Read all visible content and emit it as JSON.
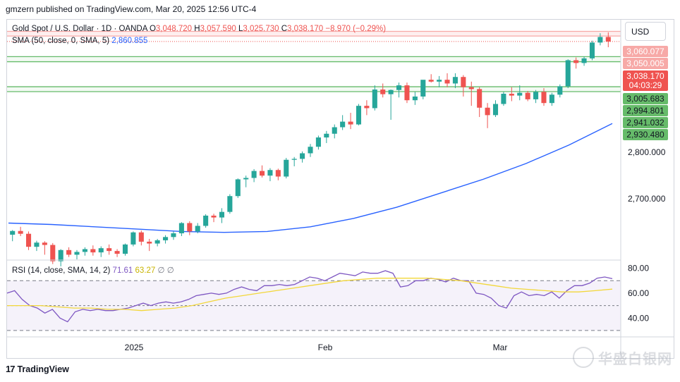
{
  "header": {
    "publisher": "gmzern published on TradingView.com, Mar 20, 2025 12:56 UTC-4"
  },
  "legend": {
    "symbol": "Gold Spot / U.S. Dollar · 1D · OANDA",
    "o_label": "O",
    "o_value": "3,048.720",
    "h_label": "H",
    "h_value": "3,057.590",
    "l_label": "L",
    "l_value": "3,025.730",
    "c_label": "C",
    "c_value": "3,038.170",
    "change": "−8.970 (−0.29%)",
    "sma_label": "SMA (50, close, 0, SMA, 5)",
    "sma_value": "2,860.855"
  },
  "rsi_legend": {
    "label": "RSI (14, close, SMA, 14, 2)",
    "rsi_value": "71.61",
    "rsi_sma_value": "63.27",
    "extra1": "∅",
    "extra2": "∅"
  },
  "currency_button": "USD",
  "footer": {
    "brand": "TradingView"
  },
  "watermark": "华盛白银网",
  "colors": {
    "up": "#26a69a",
    "down": "#ef5350",
    "sma": "#2962ff",
    "rsi": "#7e57c2",
    "rsi_sma": "#f2d73a",
    "resistance_zone": "#f7a9a7",
    "support_zone": "#66bb6a"
  },
  "chart_data": [
    {
      "type": "candlestick",
      "title": "Gold Spot / U.S. Dollar · 1D · OANDA",
      "y_ticks": [
        {
          "value": 2700,
          "label": "2,700.000"
        },
        {
          "value": 2800,
          "label": "2,800.000"
        }
      ],
      "x_ticks": [
        "2025",
        "Feb",
        "Mar"
      ],
      "price_tags": [
        {
          "value": 3060.077,
          "label": "3,060.077",
          "kind": "resistance"
        },
        {
          "value": 3050.005,
          "label": "3,050.005",
          "kind": "resistance"
        },
        {
          "value": 3038.17,
          "label": "3,038.170",
          "kind": "last"
        },
        {
          "label": "04:03:29",
          "kind": "countdown"
        },
        {
          "value": 3005.683,
          "label": "3,005.683",
          "kind": "support"
        },
        {
          "value": 2994.801,
          "label": "2,994.801",
          "kind": "support"
        },
        {
          "value": 2941.032,
          "label": "2,941.032",
          "kind": "support"
        },
        {
          "value": 2930.48,
          "label": "2,930.480",
          "kind": "support"
        }
      ],
      "zones": [
        {
          "name": "resistance",
          "low": 3050.005,
          "high": 3060.077
        },
        {
          "name": "support upper",
          "low": 2994.801,
          "high": 3005.683
        },
        {
          "name": "support lower",
          "low": 2930.48,
          "high": 2941.032
        }
      ],
      "ohlc": [
        [
          2623,
          2633,
          2609,
          2631
        ],
        [
          2631,
          2640,
          2620,
          2625
        ],
        [
          2625,
          2630,
          2590,
          2597
        ],
        [
          2597,
          2610,
          2588,
          2606
        ],
        [
          2606,
          2609,
          2580,
          2601
        ],
        [
          2601,
          2605,
          2560,
          2566
        ],
        [
          2566,
          2592,
          2555,
          2590
        ],
        [
          2590,
          2596,
          2575,
          2580
        ],
        [
          2580,
          2590,
          2570,
          2586
        ],
        [
          2586,
          2596,
          2578,
          2592
        ],
        [
          2592,
          2600,
          2578,
          2585
        ],
        [
          2585,
          2598,
          2575,
          2594
        ],
        [
          2594,
          2602,
          2580,
          2588
        ],
        [
          2588,
          2592,
          2575,
          2582
        ],
        [
          2582,
          2604,
          2578,
          2602
        ],
        [
          2602,
          2630,
          2598,
          2628
        ],
        [
          2628,
          2632,
          2600,
          2608
        ],
        [
          2608,
          2614,
          2588,
          2604
        ],
        [
          2604,
          2614,
          2598,
          2611
        ],
        [
          2611,
          2622,
          2604,
          2618
        ],
        [
          2618,
          2630,
          2612,
          2626
        ],
        [
          2626,
          2650,
          2620,
          2648
        ],
        [
          2648,
          2652,
          2622,
          2630
        ],
        [
          2630,
          2648,
          2626,
          2642
        ],
        [
          2642,
          2667,
          2638,
          2664
        ],
        [
          2664,
          2668,
          2650,
          2660
        ],
        [
          2660,
          2680,
          2648,
          2672
        ],
        [
          2672,
          2710,
          2668,
          2706
        ],
        [
          2706,
          2744,
          2702,
          2742
        ],
        [
          2742,
          2750,
          2725,
          2745
        ],
        [
          2745,
          2764,
          2736,
          2760
        ],
        [
          2760,
          2772,
          2746,
          2750
        ],
        [
          2750,
          2766,
          2738,
          2762
        ],
        [
          2762,
          2765,
          2740,
          2748
        ],
        [
          2748,
          2788,
          2744,
          2784
        ],
        [
          2784,
          2790,
          2770,
          2786
        ],
        [
          2786,
          2802,
          2778,
          2798
        ],
        [
          2798,
          2818,
          2790,
          2812
        ],
        [
          2812,
          2836,
          2806,
          2832
        ],
        [
          2832,
          2846,
          2820,
          2840
        ],
        [
          2840,
          2860,
          2830,
          2854
        ],
        [
          2854,
          2880,
          2848,
          2866
        ],
        [
          2866,
          2885,
          2850,
          2860
        ],
        [
          2860,
          2904,
          2858,
          2900
        ],
        [
          2900,
          2912,
          2880,
          2895
        ],
        [
          2895,
          2944,
          2890,
          2935
        ],
        [
          2935,
          2948,
          2918,
          2925
        ],
        [
          2925,
          2935,
          2870,
          2934
        ],
        [
          2934,
          2950,
          2918,
          2944
        ],
        [
          2944,
          2950,
          2906,
          2912
        ],
        [
          2912,
          2930,
          2902,
          2920
        ],
        [
          2920,
          2952,
          2914,
          2956
        ],
        [
          2956,
          2968,
          2950,
          2952
        ],
        [
          2952,
          2964,
          2940,
          2956
        ],
        [
          2956,
          2970,
          2940,
          2948
        ],
        [
          2948,
          2970,
          2938,
          2962
        ],
        [
          2962,
          2966,
          2920,
          2940
        ],
        [
          2940,
          2952,
          2900,
          2936
        ],
        [
          2936,
          2940,
          2876,
          2896
        ],
        [
          2896,
          2906,
          2852,
          2880
        ],
        [
          2880,
          2912,
          2876,
          2904
        ],
        [
          2904,
          2930,
          2900,
          2926
        ],
        [
          2926,
          2940,
          2910,
          2922
        ],
        [
          2922,
          2944,
          2912,
          2928
        ],
        [
          2928,
          2932,
          2910,
          2914
        ],
        [
          2914,
          2934,
          2906,
          2930
        ],
        [
          2930,
          2938,
          2900,
          2906
        ],
        [
          2906,
          2928,
          2900,
          2924
        ],
        [
          2924,
          2946,
          2918,
          2942
        ],
        [
          2942,
          3000,
          2938,
          2998
        ],
        [
          2998,
          3004,
          2980,
          2992
        ],
        [
          2992,
          3006,
          2986,
          3002
        ],
        [
          3002,
          3040,
          2998,
          3036
        ],
        [
          3036,
          3056,
          3030,
          3048
        ],
        [
          3048,
          3058,
          3026,
          3038
        ]
      ],
      "sma50": [
        2648,
        2645,
        2640,
        2635,
        2630,
        2628,
        2630,
        2640,
        2658,
        2682,
        2712,
        2742,
        2776,
        2816,
        2862
      ],
      "ylim": [
        2570,
        3082
      ]
    },
    {
      "type": "line",
      "title": "RSI (14, close, SMA, 14, 2)",
      "y_ticks": [
        {
          "value": 40,
          "label": "40.00"
        },
        {
          "value": 60,
          "label": "60.00"
        },
        {
          "value": 80,
          "label": "80.00"
        }
      ],
      "bands": {
        "upper": 70,
        "middle": 50,
        "lower": 30
      },
      "series": [
        {
          "name": "RSI",
          "values": [
            60,
            62,
            55,
            50,
            48,
            44,
            47,
            40,
            37,
            45,
            47,
            46,
            47,
            46,
            46,
            47,
            48,
            50,
            52,
            50,
            52,
            53,
            52,
            53,
            55,
            58,
            59,
            60,
            59,
            60,
            63,
            65,
            63,
            62,
            66,
            66,
            67,
            66,
            67,
            70,
            73,
            72,
            70,
            73,
            76,
            75,
            74,
            77,
            76,
            76,
            78,
            76,
            65,
            66,
            70,
            70,
            72,
            71,
            69,
            72,
            70,
            70,
            60,
            59,
            56,
            50,
            48,
            58,
            61,
            58,
            59,
            58,
            61,
            56,
            62,
            66,
            66,
            68,
            72,
            73,
            71.61
          ]
        },
        {
          "name": "RSI-based MA",
          "values": [
            50,
            50,
            50,
            49,
            48,
            48,
            47,
            47,
            46,
            47,
            48,
            50,
            53,
            56,
            58,
            60,
            62,
            64,
            66,
            68,
            70,
            71,
            72,
            72,
            72,
            72,
            71,
            70,
            68,
            66,
            64,
            63,
            62,
            61,
            61,
            62,
            63.27
          ]
        }
      ],
      "ylim": [
        26,
        86
      ]
    }
  ]
}
